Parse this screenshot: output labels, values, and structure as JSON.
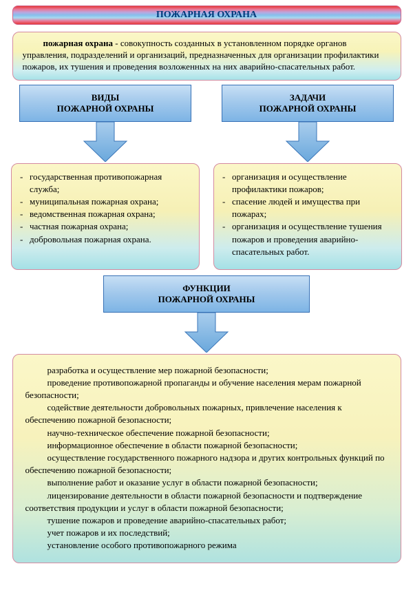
{
  "colors": {
    "title_gradient": [
      "#e63a3a",
      "#e87a9a",
      "#b8a8e0",
      "#85c0ec",
      "#a8d8f0",
      "#e87a9a",
      "#e63a3a"
    ],
    "box_gradient": [
      "#fbf7c8",
      "#f6f0b5",
      "#cdeced",
      "#a4e0e6"
    ],
    "head_gradient": [
      "#c7dff5",
      "#a3c9ec",
      "#7db4e5"
    ],
    "box_border": "#d48aa0",
    "head_border": "#3670b5",
    "arrow_fill_top": "#a9cded",
    "arrow_fill_bottom": "#6aa8dc",
    "arrow_stroke": "#3a75b8",
    "title_text": "#003a7a"
  },
  "title": "ПОЖАРНАЯ ОХРАНА",
  "definition": {
    "term": "пожарная охрана",
    "text": " - совокупность созданных в установленном порядке органов управления, подразделений и организаций, предназначенных для организации профилактики пожаров, их тушения и проведения возложенных на них аварийно-спасательных работ."
  },
  "types": {
    "heading_line1": "ВИДЫ",
    "heading_line2": "ПОЖАРНОЙ ОХРАНЫ",
    "items": [
      "государственная противопожарная служба;",
      "муниципальная пожарная охрана;",
      "ведомственная пожарная охрана;",
      "частная пожарная охрана;",
      "добровольная пожарная охрана."
    ]
  },
  "tasks": {
    "heading_line1": "ЗАДАЧИ",
    "heading_line2": "ПОЖАРНОЙ ОХРАНЫ",
    "items": [
      "организация и осуществление профилактики пожаров;",
      "спасение людей и имущества при пожарах;",
      "организация и осуществление тушения пожаров и проведения аварийно-спасательных работ."
    ]
  },
  "functions": {
    "heading_line1": "ФУНКЦИИ",
    "heading_line2": "ПОЖАРНОЙ ОХРАНЫ",
    "items": [
      "разработка и осуществление мер пожарной безопасности;",
      "проведение противопожарной пропаганды и обучение населения мерам пожарной безопасности;",
      "содействие деятельности добровольных пожарных, привлечение населения к обеспечению пожарной безопасности;",
      "научно-техническое обеспечение пожарной безопасности;",
      "информационное обеспечение в области пожарной безопасности;",
      "осуществление государственного пожарного надзора и других контрольных функций по обеспечению пожарной безопасности;",
      "выполнение работ и оказание услуг в области пожарной безопасности;",
      "лицензирование деятельности в области пожарной безопасности и подтверждение соответствия продукции и услуг в области пожарной безопасности;",
      "тушение пожаров и проведение аварийно-спасательных работ;",
      "учет пожаров и их последствий;",
      "установление особого противопожарного режима"
    ]
  }
}
